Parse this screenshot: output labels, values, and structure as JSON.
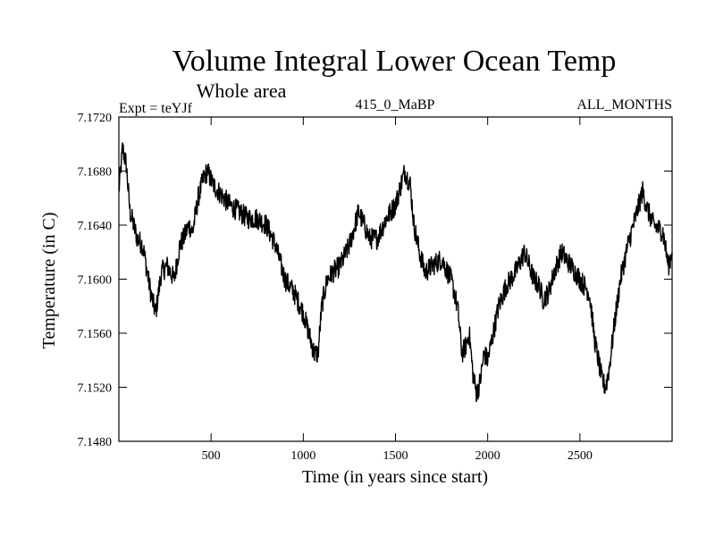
{
  "chart_data": {
    "type": "line",
    "title": "Volume Integral Lower Ocean Temp",
    "subtitle": "Whole area",
    "annotations": {
      "experiment": "Expt = teYJf",
      "period": "415_0_MaBP",
      "months": "ALL_MONTHS"
    },
    "xlabel": "Time (in years since start)",
    "ylabel": "Temperature (in C)",
    "xlim": [
      0,
      3000
    ],
    "ylim": [
      7.148,
      7.172
    ],
    "x_ticks": [
      500,
      1000,
      1500,
      2000,
      2500
    ],
    "x_tick_labels": [
      "500",
      "1000",
      "1500",
      "2000",
      "2500"
    ],
    "y_ticks": [
      7.148,
      7.152,
      7.156,
      7.16,
      7.164,
      7.168,
      7.172
    ],
    "y_tick_labels": [
      "7.1480",
      "7.1520",
      "7.1560",
      "7.1600",
      "7.1640",
      "7.1680",
      "7.1720"
    ],
    "grid": false,
    "series": [
      {
        "name": "Volume Integral Lower Ocean Temp",
        "x": [
          0,
          20,
          40,
          60,
          80,
          100,
          130,
          160,
          180,
          200,
          230,
          260,
          300,
          330,
          350,
          380,
          400,
          430,
          460,
          480,
          510,
          540,
          570,
          600,
          650,
          700,
          750,
          800,
          850,
          880,
          900,
          950,
          1000,
          1030,
          1060,
          1080,
          1100,
          1130,
          1160,
          1200,
          1250,
          1300,
          1330,
          1360,
          1400,
          1450,
          1500,
          1530,
          1550,
          1580,
          1600,
          1630,
          1660,
          1700,
          1750,
          1800,
          1820,
          1840,
          1860,
          1880,
          1900,
          1920,
          1940,
          1960,
          1980,
          2000,
          2030,
          2060,
          2100,
          2150,
          2200,
          2250,
          2280,
          2300,
          2330,
          2360,
          2400,
          2450,
          2500,
          2550,
          2560,
          2580,
          2600,
          2620,
          2640,
          2660,
          2690,
          2720,
          2760,
          2800,
          2840,
          2870,
          2900,
          2950,
          2980,
          3000
        ],
        "y": [
          7.1665,
          7.1697,
          7.1685,
          7.165,
          7.164,
          7.163,
          7.1625,
          7.16,
          7.1585,
          7.1575,
          7.1605,
          7.161,
          7.16,
          7.1625,
          7.163,
          7.164,
          7.1635,
          7.166,
          7.1675,
          7.168,
          7.167,
          7.1665,
          7.166,
          7.1655,
          7.165,
          7.1645,
          7.1645,
          7.164,
          7.1625,
          7.161,
          7.16,
          7.159,
          7.1575,
          7.156,
          7.1545,
          7.1545,
          7.158,
          7.16,
          7.1605,
          7.161,
          7.1625,
          7.165,
          7.164,
          7.163,
          7.163,
          7.1645,
          7.1655,
          7.167,
          7.168,
          7.167,
          7.164,
          7.162,
          7.1605,
          7.161,
          7.1615,
          7.16,
          7.159,
          7.1575,
          7.1545,
          7.155,
          7.156,
          7.153,
          7.1515,
          7.1525,
          7.1545,
          7.154,
          7.156,
          7.158,
          7.1595,
          7.1605,
          7.162,
          7.16,
          7.1595,
          7.1585,
          7.159,
          7.1605,
          7.162,
          7.161,
          7.16,
          7.159,
          7.158,
          7.1555,
          7.154,
          7.1525,
          7.152,
          7.1535,
          7.157,
          7.16,
          7.1625,
          7.1645,
          7.1665,
          7.165,
          7.164,
          7.1635,
          7.161,
          7.162
        ]
      }
    ]
  }
}
